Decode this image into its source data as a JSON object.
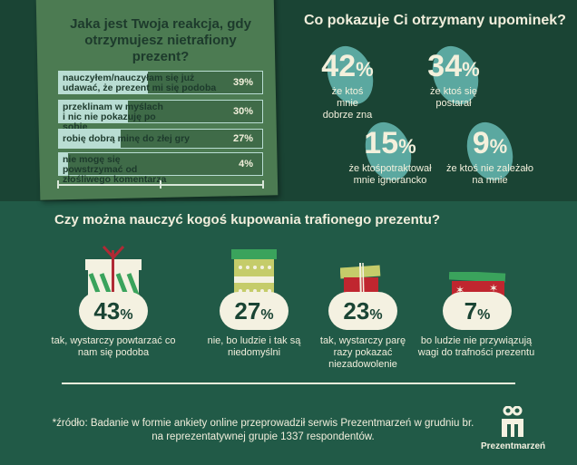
{
  "reaction": {
    "title": "Jaka jest Twoja reakcja, gdy otrzymujesz nietrafiony prezent?",
    "rows": [
      {
        "label": "nauczyłem/nauczyłam się już udawać, że prezent mi się podoba",
        "value": 39,
        "pct": "39%"
      },
      {
        "label": "przeklinam w myślach i nic nie pokazuję po sobie",
        "value": 30,
        "pct": "30%"
      },
      {
        "label": "robię dobrą minę do złej gry",
        "value": 27,
        "pct": "27%"
      },
      {
        "label": "nie mogę się powstrzymać od złośliwego komentarza",
        "value": 4,
        "pct": "4%"
      }
    ]
  },
  "shows": {
    "title": "Co pokazuje Ci otrzymany upominek?",
    "items": [
      {
        "num": "42",
        "unit": "%",
        "text": "że ktoś mnie dobrze zna"
      },
      {
        "num": "34",
        "unit": "%",
        "text": "że ktoś się postarał"
      },
      {
        "num": "15",
        "unit": "%",
        "text": "że ktośpotraktował mnie ignorancko"
      },
      {
        "num": "9",
        "unit": "%",
        "text": "że ktoś nie zależało na mnie"
      }
    ]
  },
  "teach": {
    "title": "Czy można nauczyć kogoś kupowania trafionego prezentu?",
    "items": [
      {
        "num": "43",
        "unit": "%",
        "text": "tak, wystarczy powtarzać co nam się podoba"
      },
      {
        "num": "27",
        "unit": "%",
        "text": "nie, bo ludzie i tak są niedomyślni"
      },
      {
        "num": "23",
        "unit": "%",
        "text": "tak, wystarczy parę razy pokazać niezadowolenie"
      },
      {
        "num": "7",
        "unit": "%",
        "text": "bo ludzie nie przywiązują wagi do trafności prezentu"
      }
    ]
  },
  "footer": {
    "source": "*źródło: Badanie w formie ankiety online przeprowadził serwis Prezentmarzeń w grudniu br. na reprezentatywnej grupie 1337 respondentów.",
    "logo": "Prezentmarzeń"
  },
  "colors": {
    "dark": "#1a4434",
    "green": "#215a47",
    "teal": "#5ba8a0",
    "cream": "#f4f1e1",
    "red": "#c0262f",
    "lime": "#c5cc6a"
  }
}
